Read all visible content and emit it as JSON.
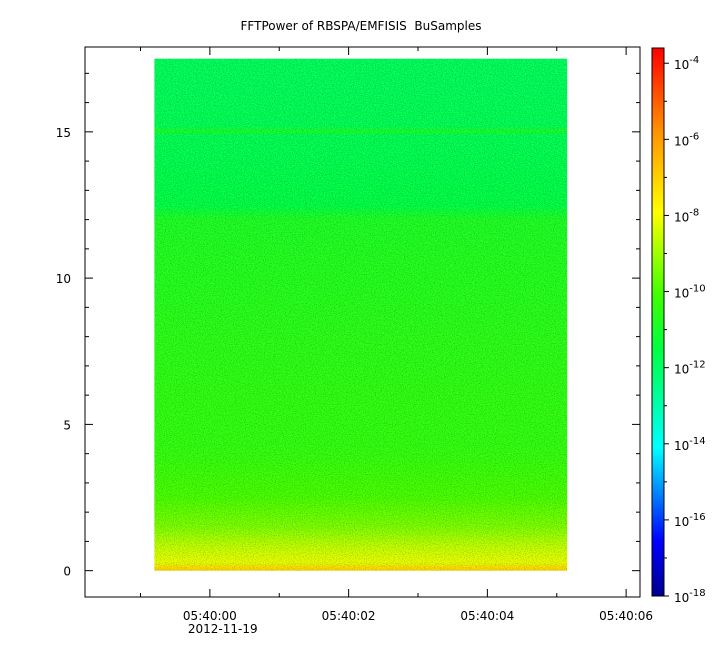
{
  "chart_data": {
    "type": "heatmap",
    "title": "FFTPower of RBSPA/EMFISIS  BuSamples",
    "xlabel": "",
    "ylabel": "",
    "x_ticks": [
      {
        "label": "05:40:00",
        "sub": "2012-11-19",
        "value": 0
      },
      {
        "label": "05:40:02",
        "value": 2
      },
      {
        "label": "05:40:04",
        "value": 4
      },
      {
        "label": "05:40:06",
        "value": 6
      }
    ],
    "x_minor_ticks": [
      -1,
      1,
      3,
      5
    ],
    "xlim": [
      -1.8,
      6.2
    ],
    "y_ticks": [
      {
        "label": "0",
        "value": 0
      },
      {
        "label": "5",
        "value": 5
      },
      {
        "label": "10",
        "value": 10
      },
      {
        "label": "15",
        "value": 15
      }
    ],
    "ylim": [
      -0.9,
      17.9
    ],
    "data_extent": {
      "x": [
        -0.8,
        5.15
      ],
      "y": [
        0,
        17.5
      ]
    },
    "colorbar": {
      "scale": "log",
      "range": [
        -18,
        -3.6
      ],
      "ticks": [
        {
          "mantissa": "10",
          "exp": "-4",
          "value": -4
        },
        {
          "mantissa": "10",
          "exp": "-6",
          "value": -6
        },
        {
          "mantissa": "10",
          "exp": "-8",
          "value": -8
        },
        {
          "mantissa": "10",
          "exp": "-10",
          "value": -10
        },
        {
          "mantissa": "10",
          "exp": "-12",
          "value": -12
        },
        {
          "mantissa": "10",
          "exp": "-14",
          "value": -14
        },
        {
          "mantissa": "10",
          "exp": "-16",
          "value": -16
        },
        {
          "mantissa": "10",
          "exp": "-18",
          "value": -18
        }
      ]
    },
    "power_profile": [
      {
        "y": 0.0,
        "log_power": -7.0
      },
      {
        "y": 0.3,
        "log_power": -8.2
      },
      {
        "y": 0.8,
        "log_power": -8.6
      },
      {
        "y": 1.5,
        "log_power": -9.4
      },
      {
        "y": 2.5,
        "log_power": -10.0
      },
      {
        "y": 4.0,
        "log_power": -10.4
      },
      {
        "y": 8.0,
        "log_power": -10.6
      },
      {
        "y": 12.0,
        "log_power": -10.9
      },
      {
        "y": 12.5,
        "log_power": -11.6
      },
      {
        "y": 14.9,
        "log_power": -11.8
      },
      {
        "y": 15.0,
        "log_power": -11.0
      },
      {
        "y": 15.2,
        "log_power": -11.8
      },
      {
        "y": 17.5,
        "log_power": -11.9
      }
    ]
  }
}
